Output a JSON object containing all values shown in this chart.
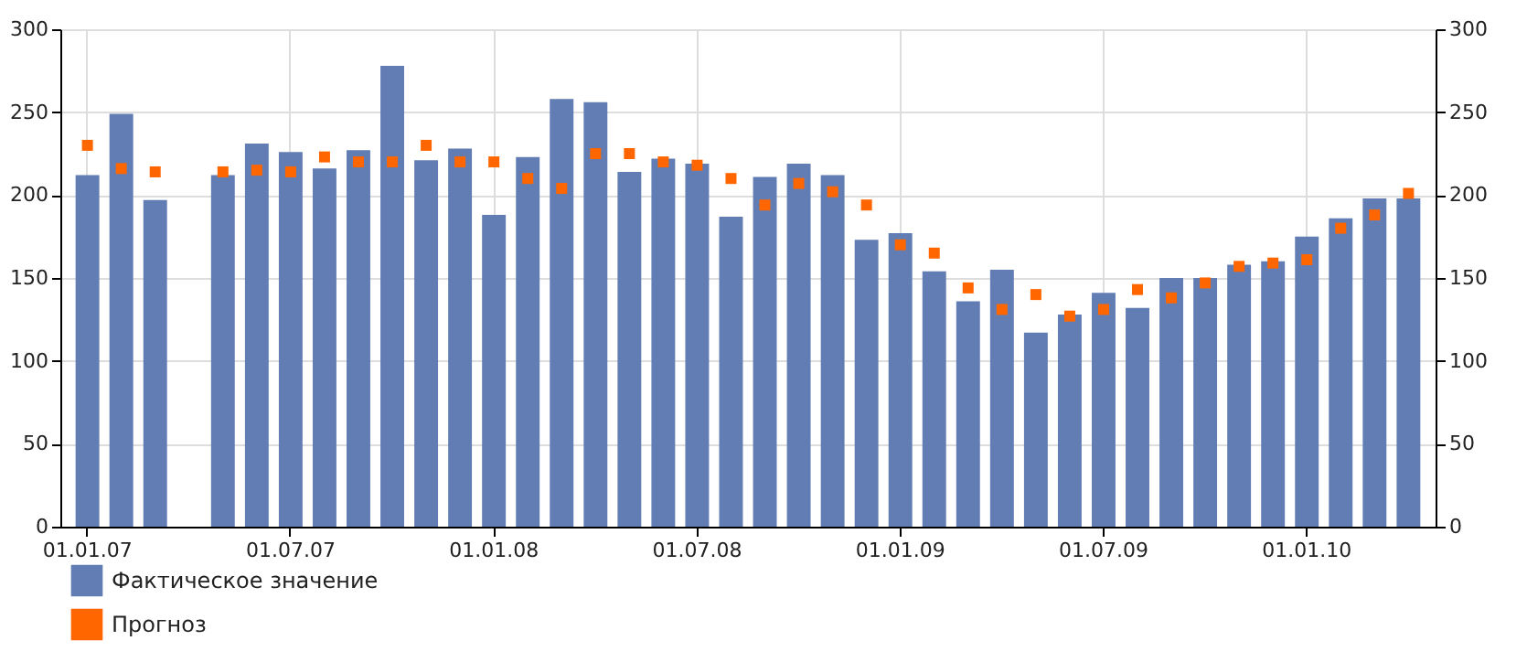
{
  "chart_data": {
    "type": "bar",
    "categories": [
      "01.01.07",
      null,
      null,
      null,
      null,
      null,
      "01.07.07",
      null,
      null,
      null,
      null,
      null,
      "01.01.08",
      null,
      null,
      null,
      null,
      null,
      "01.07.08",
      null,
      null,
      null,
      null,
      null,
      "01.01.09",
      null,
      null,
      null,
      null,
      null,
      "01.07.09",
      null,
      null,
      null,
      null,
      null,
      "01.01.10",
      null,
      null,
      null
    ],
    "series": [
      {
        "name": "Фактическое значение",
        "color": "#627db3",
        "values": [
          212,
          249,
          197,
          null,
          212,
          231,
          226,
          216,
          227,
          278,
          221,
          228,
          188,
          223,
          258,
          256,
          214,
          222,
          219,
          187,
          211,
          219,
          212,
          173,
          177,
          154,
          136,
          155,
          117,
          128,
          141,
          132,
          150,
          150,
          158,
          160,
          175,
          186,
          198,
          198
        ]
      },
      {
        "name": "Прогноз",
        "type": "scatter",
        "color": "#ff6600",
        "values": [
          230,
          216,
          214,
          null,
          214,
          215,
          214,
          223,
          220,
          220,
          230,
          220,
          220,
          210,
          204,
          225,
          225,
          220,
          218,
          210,
          194,
          207,
          202,
          194,
          170,
          165,
          144,
          131,
          140,
          127,
          131,
          143,
          138,
          147,
          157,
          159,
          161,
          180,
          188,
          201
        ]
      }
    ],
    "ylim": [
      0,
      300
    ],
    "yticks": [
      0,
      50,
      100,
      150,
      200,
      250,
      300
    ],
    "y2lim": [
      0,
      300
    ],
    "y2ticks": [
      0,
      50,
      100,
      150,
      200,
      250,
      300
    ],
    "grid": true,
    "legend": "bottom left",
    "marker": "square"
  }
}
